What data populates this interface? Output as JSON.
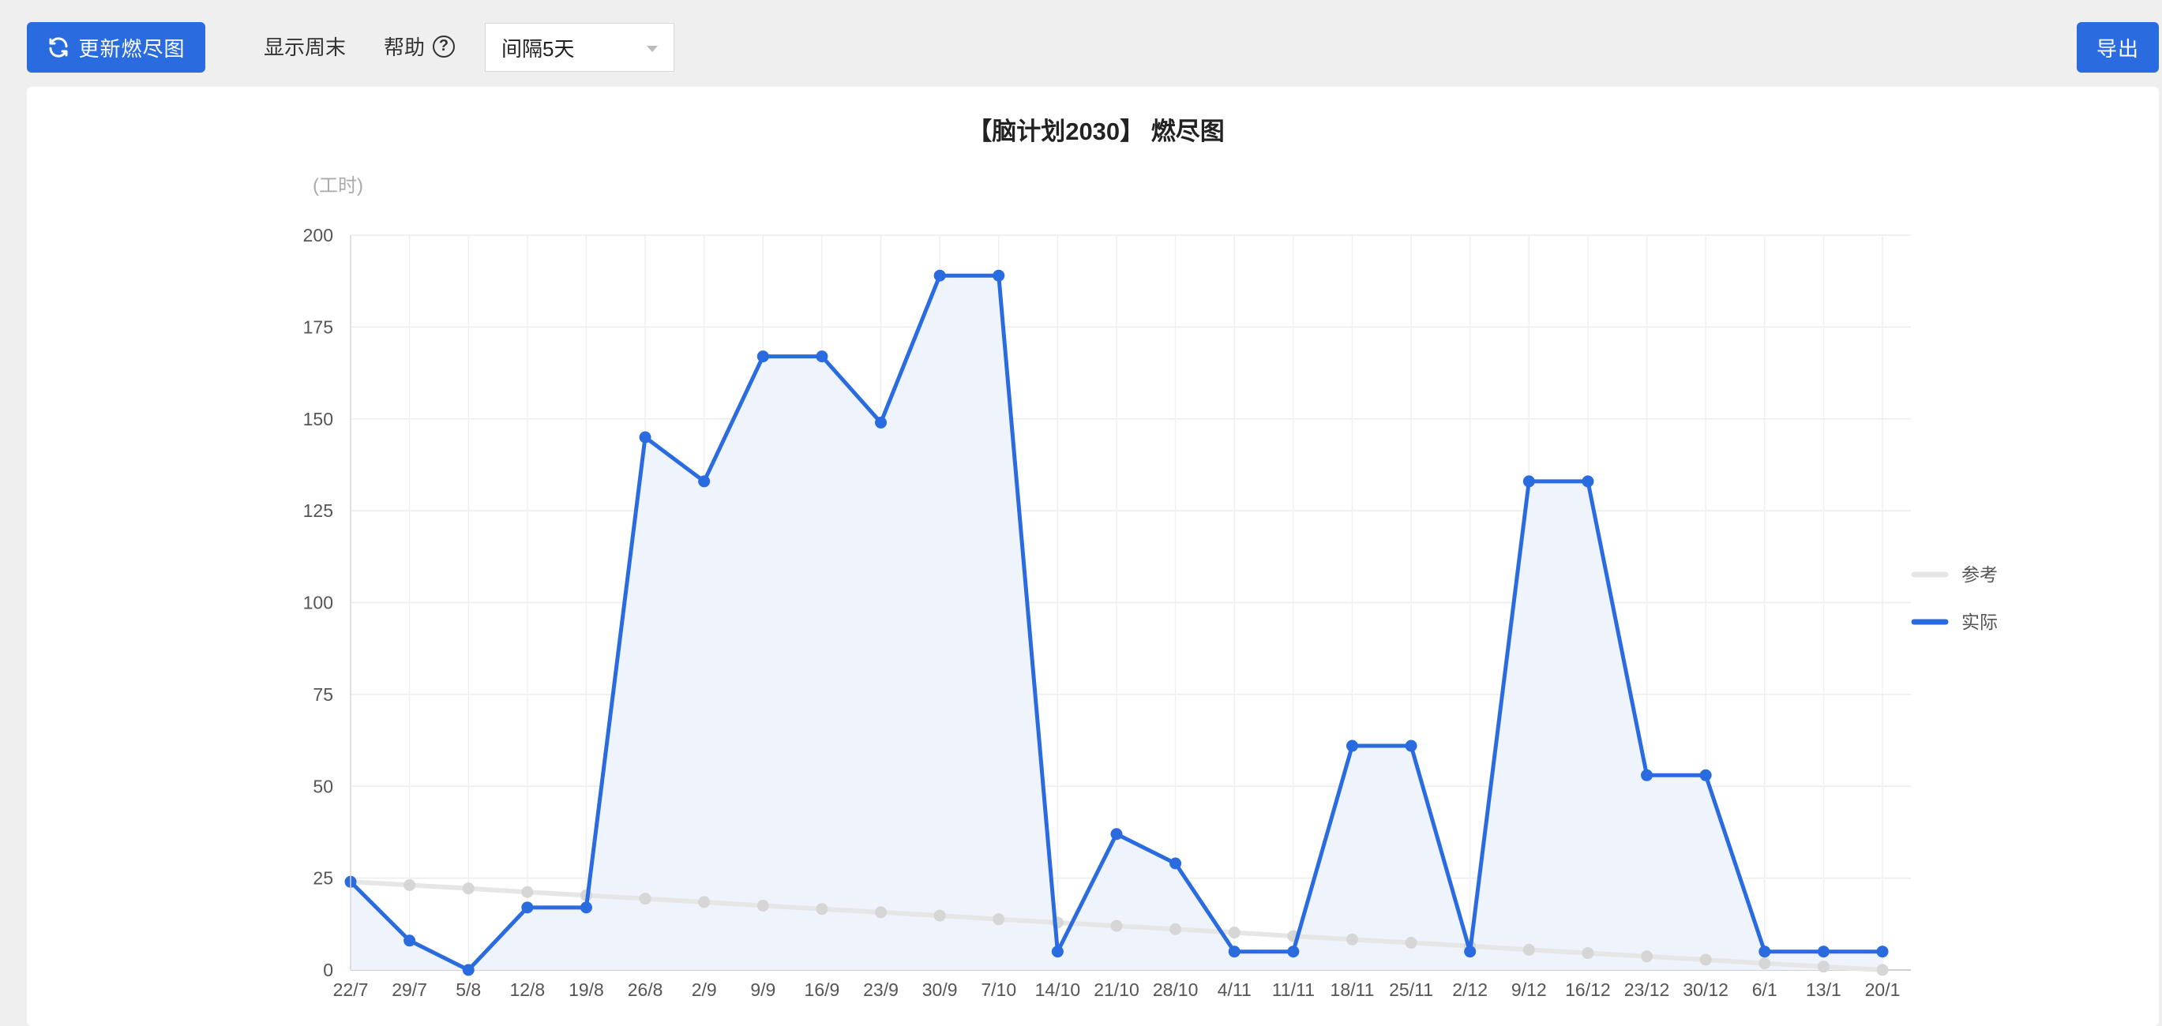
{
  "toolbar": {
    "refresh_label": "更新燃尽图",
    "weekend_label": "显示周末",
    "help_label": "帮助",
    "interval_value": "间隔5天",
    "export_label": "导出"
  },
  "icons": {
    "refresh": "refresh-icon",
    "help": "question-circle-icon",
    "dropdown": "chevron-down-icon"
  },
  "colors": {
    "primary": "#2a6be0",
    "actual_line": "#2a6be0",
    "actual_fill": "#eef3fc",
    "reference_line": "#e6e6e6",
    "reference_point": "#d6d6d6"
  },
  "chart_data": {
    "type": "line",
    "title": "【脑计划2030】 燃尽图",
    "ylabel": "(工时)",
    "xlabel": "",
    "ylim": [
      0,
      200
    ],
    "yticks": [
      0,
      25,
      50,
      75,
      100,
      125,
      150,
      175,
      200
    ],
    "grid": true,
    "legend_position": "right",
    "categories": [
      "22/7",
      "29/7",
      "5/8",
      "12/8",
      "19/8",
      "26/8",
      "2/9",
      "9/9",
      "16/9",
      "23/9",
      "30/9",
      "7/10",
      "14/10",
      "21/10",
      "28/10",
      "4/11",
      "11/11",
      "18/11",
      "25/11",
      "2/12",
      "9/12",
      "16/12",
      "23/12",
      "30/12",
      "6/1",
      "13/1",
      "20/1"
    ],
    "series": [
      {
        "name": "参考",
        "values": [
          24,
          23.1,
          22.2,
          21.2,
          20.3,
          19.4,
          18.5,
          17.5,
          16.6,
          15.7,
          14.8,
          13.8,
          12.9,
          12,
          11.1,
          10.2,
          9.2,
          8.3,
          7.4,
          6.5,
          5.5,
          4.6,
          3.7,
          2.8,
          1.8,
          0.9,
          0
        ]
      },
      {
        "name": "实际",
        "values": [
          24,
          8,
          0,
          17,
          17,
          145,
          133,
          167,
          167,
          149,
          189,
          189,
          5,
          37,
          29,
          5,
          5,
          61,
          61,
          5,
          133,
          133,
          53,
          53,
          5,
          5,
          5
        ]
      }
    ]
  }
}
